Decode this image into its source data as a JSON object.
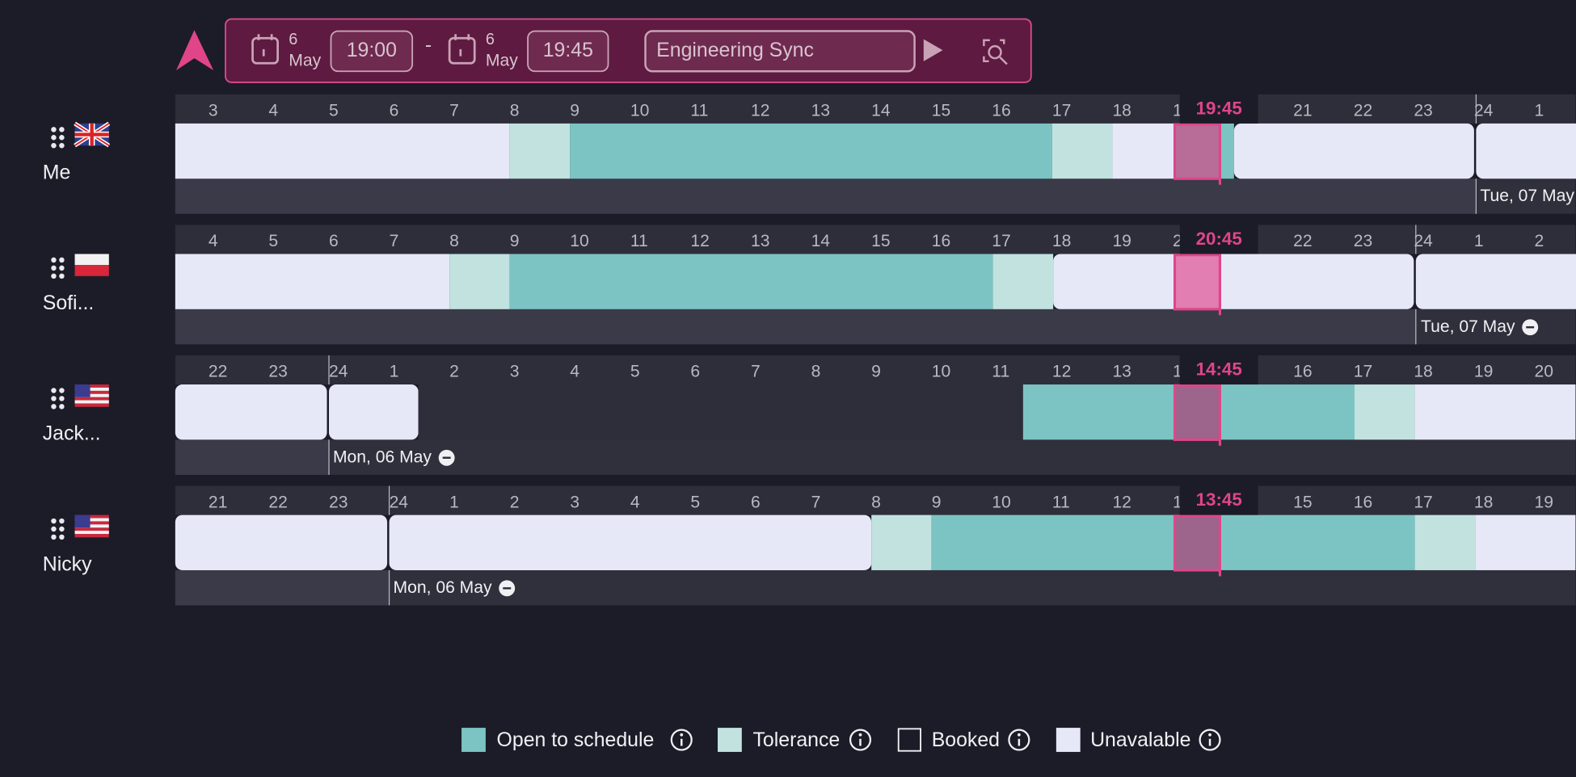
{
  "toolbar": {
    "start": {
      "day": "6",
      "month": "May",
      "time": "19:00"
    },
    "separator": "-",
    "end": {
      "day": "6",
      "month": "May",
      "time": "19:45"
    },
    "meeting_title": "Engineering Sync"
  },
  "people": [
    {
      "name": "Me",
      "hours": [
        "3",
        "4",
        "5",
        "6",
        "7",
        "8",
        "9",
        "10",
        "11",
        "12",
        "13",
        "14",
        "15",
        "16",
        "17",
        "18",
        "1",
        null,
        "21",
        "22",
        "23",
        "24",
        "1"
      ],
      "current_time": "19:45",
      "date_label": "Tue, 07 May"
    },
    {
      "name": "Sofi...",
      "hours": [
        "4",
        "5",
        "6",
        "7",
        "8",
        "9",
        "10",
        "11",
        "12",
        "13",
        "14",
        "15",
        "16",
        "17",
        "18",
        "19",
        "2",
        null,
        "22",
        "23",
        "24",
        "1",
        "2"
      ],
      "current_time": "20:45",
      "date_label": "Tue, 07 May"
    },
    {
      "name": "Jack...",
      "hours": [
        "22",
        "23",
        "24",
        "1",
        "2",
        "3",
        "4",
        "5",
        "6",
        "7",
        "8",
        "9",
        "10",
        "11",
        "12",
        "13",
        "1",
        null,
        "16",
        "17",
        "18",
        "19",
        "20"
      ],
      "current_time": "14:45",
      "date_label": "Mon, 06 May"
    },
    {
      "name": "Nicky",
      "hours": [
        "21",
        "22",
        "23",
        "24",
        "1",
        "2",
        "3",
        "4",
        "5",
        "6",
        "7",
        "8",
        "9",
        "10",
        "11",
        "12",
        "1",
        null,
        "15",
        "16",
        "17",
        "18",
        "19"
      ],
      "current_time": "13:45",
      "date_label": "Mon, 06 May"
    }
  ],
  "legend": [
    "Open to schedule",
    "Tolerance",
    "Booked",
    "Unavalable"
  ]
}
